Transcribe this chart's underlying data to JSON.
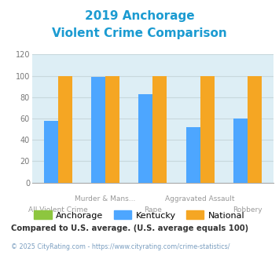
{
  "title_line1": "2019 Anchorage",
  "title_line2": "Violent Crime Comparison",
  "title_color": "#1b9bd1",
  "categories": [
    "All Violent Crime",
    "Murder & Mans...",
    "Rape",
    "Aggravated Assault",
    "Robbery"
  ],
  "anchorage_values": [
    null,
    null,
    null,
    null,
    null
  ],
  "kentucky_values": [
    58,
    99,
    83,
    52,
    60
  ],
  "national_values": [
    100,
    100,
    100,
    100,
    100
  ],
  "anchorage_color": "#8dc63f",
  "kentucky_color": "#4da6ff",
  "national_color": "#f5a623",
  "ylim": [
    0,
    120
  ],
  "yticks": [
    0,
    20,
    40,
    60,
    80,
    100,
    120
  ],
  "grid_color": "#c8d8dc",
  "bg_color": "#ddeef5",
  "legend_labels": [
    "Anchorage",
    "Kentucky",
    "National"
  ],
  "footnote": "Compared to U.S. average. (U.S. average equals 100)",
  "footnote_color": "#333333",
  "credit": "© 2025 CityRating.com - https://www.cityrating.com/crime-statistics/",
  "credit_color": "#7a9ec0",
  "bar_width": 0.3,
  "top_labels": [
    "",
    "Murder & Mans...",
    "",
    "Aggravated Assault",
    ""
  ],
  "bot_labels": [
    "All Violent Crime",
    "",
    "Rape",
    "",
    "Robbery"
  ]
}
